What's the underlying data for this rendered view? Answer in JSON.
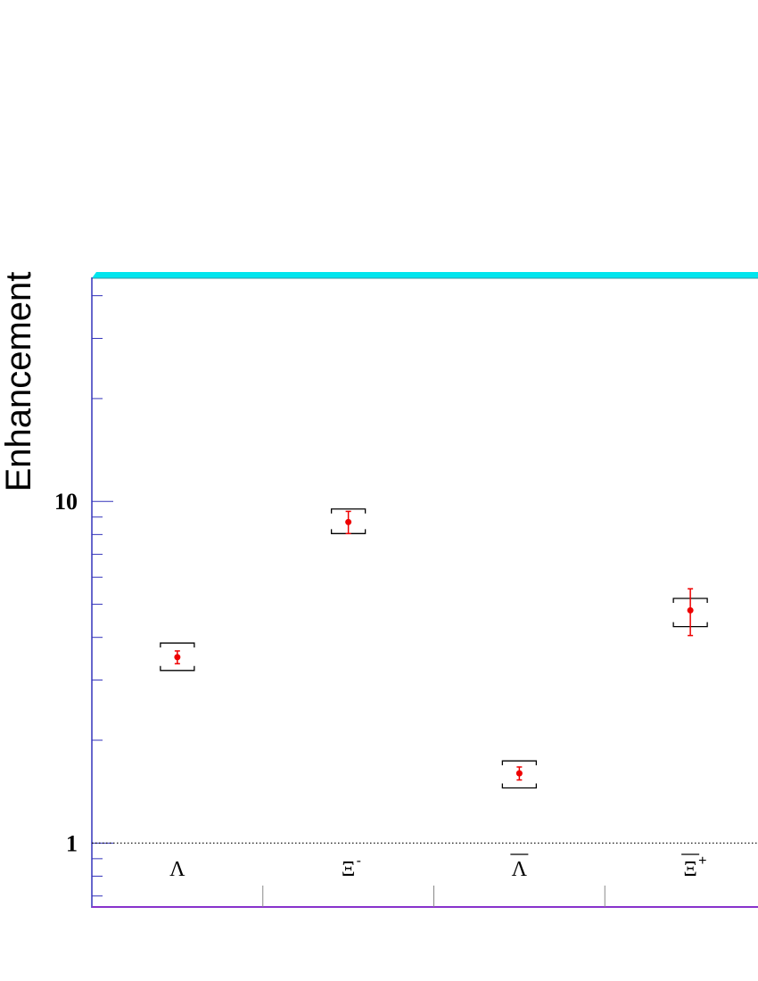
{
  "chart_data": {
    "type": "scatter",
    "ylabel": "Enhancement",
    "xlabel": "",
    "title": "",
    "yscale": "log",
    "ylim": [
      0.65,
      45
    ],
    "yticks_labeled": [
      {
        "value": 1,
        "label": "1"
      },
      {
        "value": 10,
        "label": "10"
      }
    ],
    "reference_line": {
      "y": 1,
      "style": "dotted"
    },
    "categories": [
      {
        "symbol": "Λ",
        "sup": "",
        "overline": false
      },
      {
        "symbol": "Ξ",
        "sup": "-",
        "overline": false
      },
      {
        "symbol": "Λ",
        "sup": "",
        "overline": true
      },
      {
        "symbol": "Ξ",
        "sup": "+",
        "overline": true
      }
    ],
    "series": [
      {
        "values": [
          3.5,
          8.7,
          1.6,
          4.8
        ],
        "stat_err_low": [
          3.35,
          8.05,
          1.53,
          4.05
        ],
        "stat_err_high": [
          3.65,
          9.35,
          1.67,
          5.55
        ],
        "sys_err_low": [
          3.2,
          8.05,
          1.45,
          4.3
        ],
        "sys_err_high": [
          3.85,
          9.5,
          1.74,
          5.2
        ]
      }
    ],
    "colors": {
      "points": "#ee0000",
      "systematic_brackets": "#000000",
      "top_frame": "#00e5ee",
      "left_axis": "#3333bb",
      "bottom_axis": "#8833cc"
    },
    "grid": false,
    "legend": "none"
  }
}
